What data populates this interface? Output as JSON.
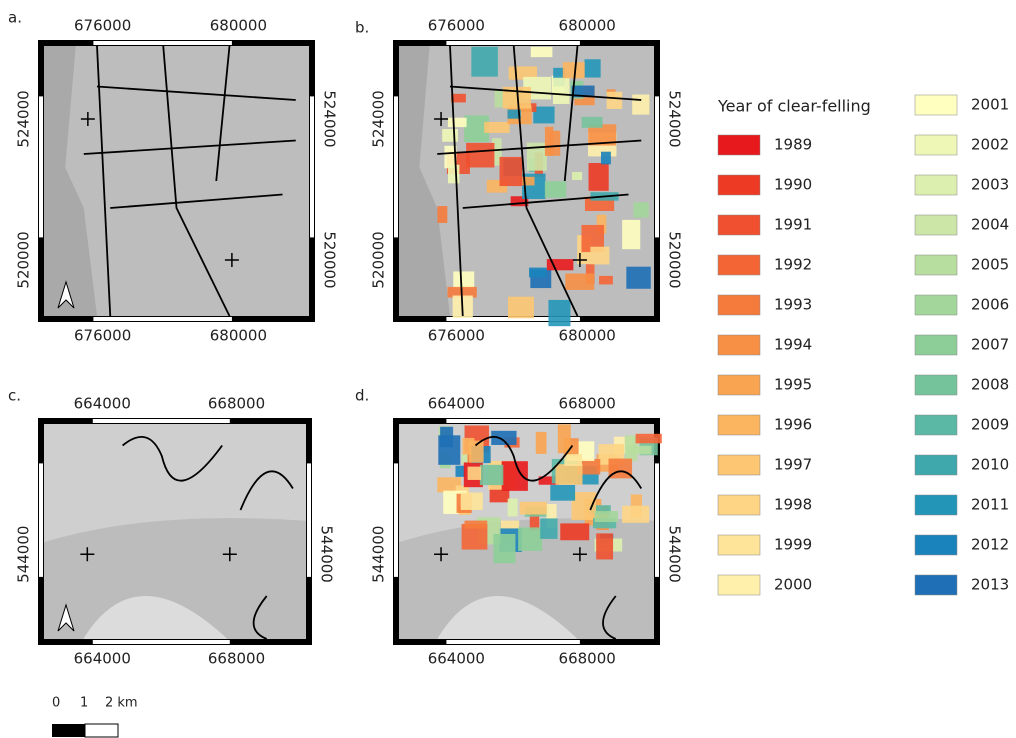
{
  "panels": [
    {
      "label": "a.",
      "x_top": [
        "676000",
        "680000"
      ],
      "x_bottom": [
        "676000",
        "680000"
      ],
      "y_left": [
        "524000",
        "520000"
      ],
      "y_right": [
        "524000",
        "520000"
      ]
    },
    {
      "label": "b.",
      "x_top": [
        "676000",
        "680000"
      ],
      "x_bottom": [
        "676000",
        "680000"
      ],
      "y_left": [
        "524000",
        "520000"
      ],
      "y_right": [
        "524000",
        "520000"
      ]
    },
    {
      "label": "c.",
      "x_top": [
        "664000",
        "668000"
      ],
      "x_bottom": [
        "664000",
        "668000"
      ],
      "y_left": [
        "544000"
      ],
      "y_right": [
        "544000"
      ]
    },
    {
      "label": "d.",
      "x_top": [
        "664000",
        "668000"
      ],
      "x_bottom": [
        "664000",
        "668000"
      ],
      "y_left": [
        "544000"
      ],
      "y_right": [
        "544000"
      ]
    }
  ],
  "legend": {
    "title": "Year of clear-felling",
    "items": [
      {
        "year": "1989",
        "color": "#e8191c"
      },
      {
        "year": "1990",
        "color": "#ec3a24"
      },
      {
        "year": "1991",
        "color": "#f0502f"
      },
      {
        "year": "1992",
        "color": "#f46536"
      },
      {
        "year": "1993",
        "color": "#f57b3c"
      },
      {
        "year": "1994",
        "color": "#f78f45"
      },
      {
        "year": "1995",
        "color": "#f9a450"
      },
      {
        "year": "1996",
        "color": "#fbb560"
      },
      {
        "year": "1997",
        "color": "#fcc672"
      },
      {
        "year": "1998",
        "color": "#fdd585"
      },
      {
        "year": "1999",
        "color": "#fee498"
      },
      {
        "year": "2000",
        "color": "#fff0ac"
      },
      {
        "year": "2001",
        "color": "#ffffbf"
      },
      {
        "year": "2002",
        "color": "#eef7b6"
      },
      {
        "year": "2003",
        "color": "#ddefae"
      },
      {
        "year": "2004",
        "color": "#cbe6a7"
      },
      {
        "year": "2005",
        "color": "#b8de9f"
      },
      {
        "year": "2006",
        "color": "#a3d69a"
      },
      {
        "year": "2007",
        "color": "#8dce98"
      },
      {
        "year": "2008",
        "color": "#75c39b"
      },
      {
        "year": "2009",
        "color": "#5bb8a4"
      },
      {
        "year": "2010",
        "color": "#3ea8ad"
      },
      {
        "year": "2011",
        "color": "#2396b8"
      },
      {
        "year": "2012",
        "color": "#1a83bb"
      },
      {
        "year": "2013",
        "color": "#1e6fb5"
      }
    ]
  },
  "scale_bar": {
    "labels": [
      "0",
      "1",
      "2 km"
    ]
  }
}
